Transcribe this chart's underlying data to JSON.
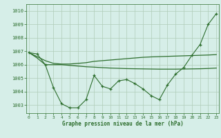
{
  "xlabel": "Graphe pression niveau de la mer (hPa)",
  "bg_color": "#d6eee8",
  "line_color": "#2d6e2d",
  "grid_color": "#b0ccb8",
  "x": [
    0,
    1,
    2,
    3,
    4,
    5,
    6,
    7,
    8,
    9,
    10,
    11,
    12,
    13,
    14,
    15,
    16,
    17,
    18,
    19,
    20,
    21,
    22,
    23
  ],
  "y_jagged": [
    1006.9,
    1006.8,
    1006.0,
    1004.3,
    1003.1,
    1002.8,
    1002.8,
    1003.4,
    1005.2,
    1004.4,
    1004.2,
    1004.8,
    1004.9,
    1004.6,
    1004.2,
    1003.7,
    1003.4,
    1004.5,
    1005.3,
    1005.8,
    1006.7,
    1007.5,
    1009.0,
    1009.8
  ],
  "y_linear1": [
    1006.9,
    1006.6,
    1006.3,
    1006.1,
    1006.05,
    1006.05,
    1006.1,
    1006.15,
    1006.25,
    1006.3,
    1006.35,
    1006.4,
    1006.45,
    1006.5,
    1006.55,
    1006.58,
    1006.6,
    1006.62,
    1006.64,
    1006.66,
    1006.68,
    1006.7,
    1006.72,
    1006.75
  ],
  "y_linear2": [
    1006.9,
    1006.5,
    1006.0,
    1006.0,
    1006.0,
    1005.95,
    1005.9,
    1005.85,
    1005.82,
    1005.78,
    1005.75,
    1005.73,
    1005.71,
    1005.7,
    1005.69,
    1005.68,
    1005.67,
    1005.67,
    1005.67,
    1005.68,
    1005.69,
    1005.7,
    1005.72,
    1005.75
  ],
  "ylim": [
    1002.4,
    1010.5
  ],
  "yticks": [
    1003,
    1004,
    1005,
    1006,
    1007,
    1008,
    1009,
    1010
  ],
  "xlim": [
    -0.3,
    23.3
  ],
  "xticks": [
    0,
    1,
    2,
    3,
    4,
    5,
    6,
    7,
    8,
    9,
    10,
    11,
    12,
    13,
    14,
    15,
    16,
    17,
    18,
    19,
    20,
    21,
    22,
    23
  ]
}
